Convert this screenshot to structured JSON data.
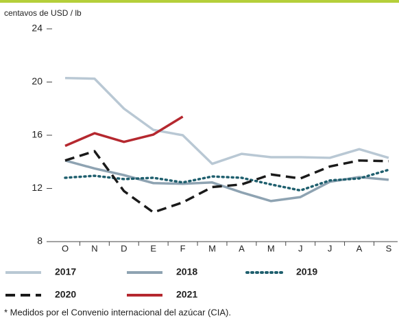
{
  "chart_data": {
    "type": "line",
    "ylabel": "centavos de USD / lb",
    "categories": [
      "O",
      "N",
      "D",
      "E",
      "F",
      "M",
      "A",
      "M",
      "J",
      "J",
      "A",
      "S"
    ],
    "ylim": [
      8,
      24
    ],
    "yticks": [
      8,
      12,
      16,
      20,
      24
    ],
    "series": [
      {
        "name": "2017",
        "color": "#b9c8d4",
        "style": "solid",
        "values": [
          20.3,
          20.25,
          18.0,
          16.4,
          16.0,
          13.85,
          14.6,
          14.35,
          14.35,
          14.3,
          14.95,
          14.3
        ]
      },
      {
        "name": "2018",
        "color": "#8ea3b2",
        "style": "solid",
        "values": [
          14.1,
          13.5,
          13.0,
          12.4,
          12.35,
          12.45,
          11.7,
          11.05,
          11.35,
          12.5,
          12.85,
          12.65
        ]
      },
      {
        "name": "2019",
        "color": "#1f5f6e",
        "style": "dotted",
        "values": [
          12.8,
          12.95,
          12.7,
          12.8,
          12.45,
          12.9,
          12.8,
          12.3,
          11.85,
          12.6,
          12.75,
          13.4
        ]
      },
      {
        "name": "2020",
        "color": "#1a1a1a",
        "style": "dashed",
        "values": [
          14.1,
          14.8,
          11.8,
          10.2,
          10.95,
          12.1,
          12.3,
          13.05,
          12.75,
          13.65,
          14.1,
          14.05
        ]
      },
      {
        "name": "2021",
        "color": "#b5282f",
        "style": "solid",
        "values": [
          15.2,
          16.15,
          15.5,
          16.05,
          17.4,
          null,
          null,
          null,
          null,
          null,
          null,
          null
        ]
      }
    ],
    "footnote": "* Medidos por el Convenio internacional del azúcar (CIA)."
  }
}
